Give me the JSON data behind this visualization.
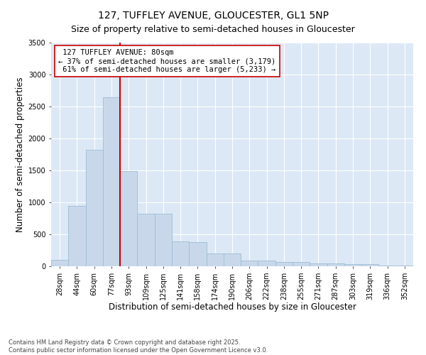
{
  "title": "127, TUFFLEY AVENUE, GLOUCESTER, GL1 5NP",
  "subtitle": "Size of property relative to semi-detached houses in Gloucester",
  "xlabel": "Distribution of semi-detached houses by size in Gloucester",
  "ylabel": "Number of semi-detached properties",
  "bins": [
    "28sqm",
    "44sqm",
    "60sqm",
    "77sqm",
    "93sqm",
    "109sqm",
    "125sqm",
    "141sqm",
    "158sqm",
    "174sqm",
    "190sqm",
    "206sqm",
    "222sqm",
    "238sqm",
    "255sqm",
    "271sqm",
    "287sqm",
    "303sqm",
    "319sqm",
    "336sqm",
    "352sqm"
  ],
  "values": [
    95,
    950,
    1820,
    2640,
    1490,
    820,
    820,
    390,
    380,
    195,
    195,
    90,
    90,
    65,
    65,
    48,
    48,
    28,
    28,
    9,
    9
  ],
  "bar_color": "#c8d8ea",
  "bar_edge_color": "#9dbdd4",
  "redline_label": "127 TUFFLEY AVENUE: 80sqm",
  "smaller_pct": "37%",
  "smaller_count": "3,179",
  "larger_pct": "61%",
  "larger_count": "5,233",
  "annotation_box_color": "#ffffff",
  "annotation_box_edge": "#cc0000",
  "redline_color": "#cc0000",
  "redline_bin_index": 3,
  "background_color": "#ffffff",
  "plot_bg_color": "#dce8f5",
  "ylim": [
    0,
    3500
  ],
  "yticks": [
    0,
    500,
    1000,
    1500,
    2000,
    2500,
    3000,
    3500
  ],
  "title_fontsize": 10,
  "axis_label_fontsize": 8.5,
  "tick_fontsize": 7,
  "annotation_fontsize": 7.5,
  "footnote_fontsize": 6,
  "footnote": "Contains HM Land Registry data © Crown copyright and database right 2025.\nContains public sector information licensed under the Open Government Licence v3.0."
}
